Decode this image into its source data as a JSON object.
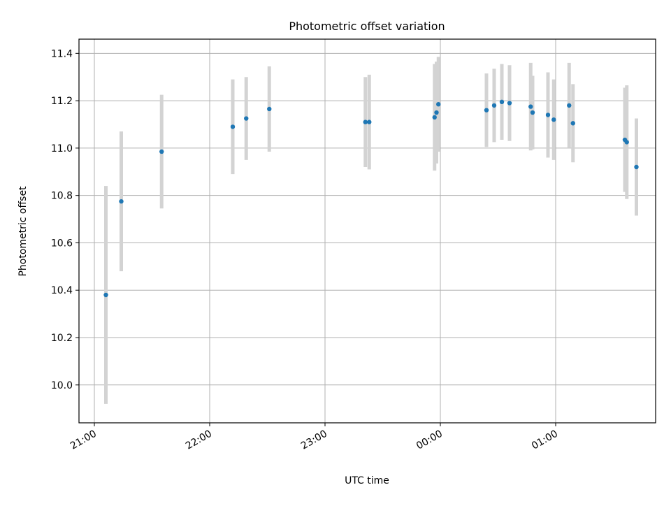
{
  "chart_data": {
    "type": "scatter",
    "title": "Photometric offset variation",
    "xlabel": "UTC time",
    "ylabel": "Photometric offset",
    "xlim": [
      "20:52",
      "25:52"
    ],
    "ylim": [
      9.84,
      11.46
    ],
    "x_ticks": [
      "21:00",
      "22:00",
      "23:00",
      "00:00",
      "01:00"
    ],
    "y_ticks": [
      "10.0",
      "10.2",
      "10.4",
      "10.6",
      "10.8",
      "11.0",
      "11.2",
      "11.4"
    ],
    "grid": true,
    "point_color": "#1f77b4",
    "errorbar_color": "#d3d3d3",
    "series": [
      {
        "points": [
          {
            "time": "21:06",
            "y": 10.38,
            "err": 0.46
          },
          {
            "time": "21:14",
            "y": 10.775,
            "err": 0.295
          },
          {
            "time": "21:35",
            "y": 10.985,
            "err": 0.24
          },
          {
            "time": "22:12",
            "y": 11.09,
            "err": 0.2
          },
          {
            "time": "22:19",
            "y": 11.125,
            "err": 0.175
          },
          {
            "time": "22:31",
            "y": 11.165,
            "err": 0.18
          },
          {
            "time": "23:21",
            "y": 11.11,
            "err": 0.19
          },
          {
            "time": "23:23",
            "y": 11.11,
            "err": 0.2
          },
          {
            "time": "23:57",
            "y": 11.13,
            "err": 0.225
          },
          {
            "time": "23:58",
            "y": 11.15,
            "err": 0.215
          },
          {
            "time": "23:59",
            "y": 11.185,
            "err": 0.2
          },
          {
            "time": "00:24",
            "y": 11.16,
            "err": 0.155
          },
          {
            "time": "00:28",
            "y": 11.18,
            "err": 0.155
          },
          {
            "time": "00:32",
            "y": 11.195,
            "err": 0.16
          },
          {
            "time": "00:36",
            "y": 11.19,
            "err": 0.16
          },
          {
            "time": "00:47",
            "y": 11.175,
            "err": 0.185
          },
          {
            "time": "00:48",
            "y": 11.15,
            "err": 0.155
          },
          {
            "time": "00:56",
            "y": 11.14,
            "err": 0.18
          },
          {
            "time": "00:59",
            "y": 11.12,
            "err": 0.17
          },
          {
            "time": "01:07",
            "y": 11.18,
            "err": 0.18
          },
          {
            "time": "01:09",
            "y": 11.105,
            "err": 0.165
          },
          {
            "time": "01:36",
            "y": 11.035,
            "err": 0.22
          },
          {
            "time": "01:37",
            "y": 11.025,
            "err": 0.24
          },
          {
            "time": "01:42",
            "y": 10.92,
            "err": 0.205
          }
        ]
      }
    ]
  }
}
